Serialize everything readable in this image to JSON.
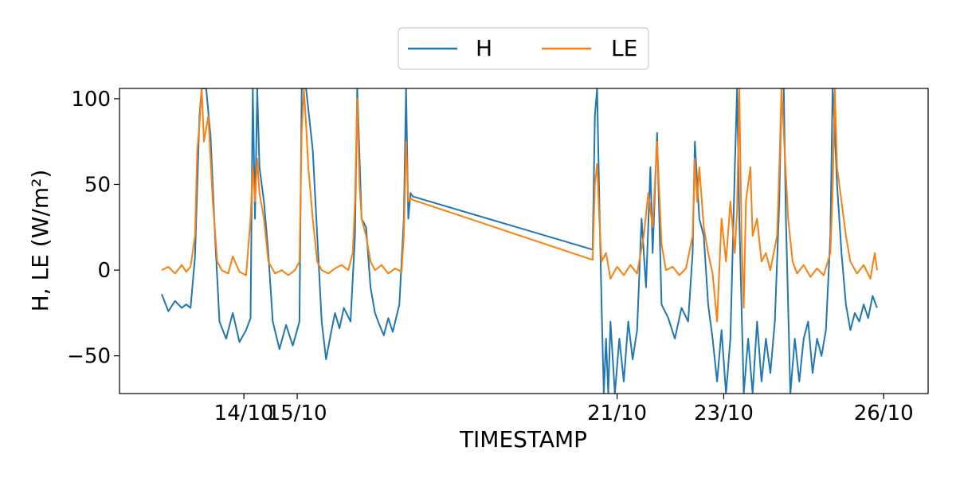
{
  "chart_data": {
    "type": "line",
    "xlabel": "TIMESTAMP",
    "ylabel": "H, LE (W/m²)",
    "ylim": [
      -72,
      106
    ],
    "yticks": [
      -50,
      0,
      50,
      100
    ],
    "ytick_labels": [
      "−50",
      "0",
      "50",
      "100"
    ],
    "xlim": [
      "2023-10-11T16:00",
      "2023-10-26T20:00"
    ],
    "xticks": [
      "2023-10-14T00:00",
      "2023-10-15T00:00",
      "2023-10-21T00:00",
      "2023-10-23T00:00",
      "2023-10-26T00:00"
    ],
    "xtick_labels": [
      "14/10",
      "15/10",
      "21/10",
      "23/10",
      "26/10"
    ],
    "legend": {
      "position": "top-center, outside plot",
      "columns": 2
    },
    "grid": false,
    "series": [
      {
        "name": "H",
        "color": "#1f77b4",
        "points": [
          [
            "2023-10-12T11:00",
            -14
          ],
          [
            "2023-10-12T14:00",
            -24
          ],
          [
            "2023-10-12T17:00",
            -18
          ],
          [
            "2023-10-12T20:00",
            -22
          ],
          [
            "2023-10-12T22:00",
            -20
          ],
          [
            "2023-10-13T00:00",
            -22
          ],
          [
            "2023-10-13T02:00",
            8
          ],
          [
            "2023-10-13T04:00",
            90
          ],
          [
            "2023-10-13T05:00",
            106
          ],
          [
            "2023-10-13T07:00",
            106
          ],
          [
            "2023-10-13T09:00",
            78
          ],
          [
            "2023-10-13T11:00",
            20
          ],
          [
            "2023-10-13T13:00",
            -30
          ],
          [
            "2023-10-13T16:00",
            -40
          ],
          [
            "2023-10-13T19:00",
            -25
          ],
          [
            "2023-10-13T22:00",
            -42
          ],
          [
            "2023-10-14T01:00",
            -35
          ],
          [
            "2023-10-14T03:00",
            -28
          ],
          [
            "2023-10-14T04:00",
            106
          ],
          [
            "2023-10-14T05:00",
            30
          ],
          [
            "2023-10-14T06:00",
            106
          ],
          [
            "2023-10-14T07:00",
            60
          ],
          [
            "2023-10-14T09:00",
            40
          ],
          [
            "2023-10-14T11:00",
            10
          ],
          [
            "2023-10-14T13:00",
            -30
          ],
          [
            "2023-10-14T16:00",
            -46
          ],
          [
            "2023-10-14T19:00",
            -32
          ],
          [
            "2023-10-14T22:00",
            -44
          ],
          [
            "2023-10-15T01:00",
            -30
          ],
          [
            "2023-10-15T02:00",
            106
          ],
          [
            "2023-10-15T04:00",
            106
          ],
          [
            "2023-10-15T07:00",
            70
          ],
          [
            "2023-10-15T09:00",
            20
          ],
          [
            "2023-10-15T11:00",
            -30
          ],
          [
            "2023-10-15T13:00",
            -52
          ],
          [
            "2023-10-15T15:00",
            -38
          ],
          [
            "2023-10-15T17:00",
            -25
          ],
          [
            "2023-10-15T19:00",
            -34
          ],
          [
            "2023-10-15T21:00",
            -22
          ],
          [
            "2023-10-16T00:00",
            -30
          ],
          [
            "2023-10-16T02:00",
            20
          ],
          [
            "2023-10-16T03:00",
            106
          ],
          [
            "2023-10-16T05:00",
            30
          ],
          [
            "2023-10-16T07:00",
            25
          ],
          [
            "2023-10-16T09:00",
            -10
          ],
          [
            "2023-10-16T11:00",
            -25
          ],
          [
            "2023-10-16T13:00",
            -32
          ],
          [
            "2023-10-16T15:00",
            -38
          ],
          [
            "2023-10-16T17:00",
            -28
          ],
          [
            "2023-10-16T19:00",
            -36
          ],
          [
            "2023-10-16T22:00",
            -20
          ],
          [
            "2023-10-17T00:00",
            30
          ],
          [
            "2023-10-17T01:00",
            106
          ],
          [
            "2023-10-17T02:00",
            30
          ],
          [
            "2023-10-17T03:00",
            45
          ],
          [
            "2023-10-17T04:00",
            43
          ],
          [
            "2023-10-20T13:00",
            12
          ],
          [
            "2023-10-20T14:00",
            90
          ],
          [
            "2023-10-20T15:00",
            106
          ],
          [
            "2023-10-20T16:00",
            40
          ],
          [
            "2023-10-20T17:00",
            -20
          ],
          [
            "2023-10-20T18:00",
            -72
          ],
          [
            "2023-10-20T19:00",
            -40
          ],
          [
            "2023-10-20T20:00",
            -72
          ],
          [
            "2023-10-20T21:00",
            -30
          ],
          [
            "2023-10-20T23:00",
            -72
          ],
          [
            "2023-10-21T01:00",
            -40
          ],
          [
            "2023-10-21T03:00",
            -65
          ],
          [
            "2023-10-21T05:00",
            -30
          ],
          [
            "2023-10-21T07:00",
            -52
          ],
          [
            "2023-10-21T09:00",
            -35
          ],
          [
            "2023-10-21T11:00",
            30
          ],
          [
            "2023-10-21T13:00",
            -10
          ],
          [
            "2023-10-21T15:00",
            60
          ],
          [
            "2023-10-21T16:00",
            10
          ],
          [
            "2023-10-21T18:00",
            80
          ],
          [
            "2023-10-21T20:00",
            -20
          ],
          [
            "2023-10-21T23:00",
            -28
          ],
          [
            "2023-10-22T02:00",
            -40
          ],
          [
            "2023-10-22T05:00",
            -22
          ],
          [
            "2023-10-22T08:00",
            -30
          ],
          [
            "2023-10-22T10:00",
            10
          ],
          [
            "2023-10-22T11:00",
            75
          ],
          [
            "2023-10-22T13:00",
            30
          ],
          [
            "2023-10-22T15:00",
            20
          ],
          [
            "2023-10-22T17:00",
            -20
          ],
          [
            "2023-10-22T19:00",
            -40
          ],
          [
            "2023-10-22T21:00",
            -65
          ],
          [
            "2023-10-22T23:00",
            -35
          ],
          [
            "2023-10-23T01:00",
            -72
          ],
          [
            "2023-10-23T03:00",
            -40
          ],
          [
            "2023-10-23T05:00",
            60
          ],
          [
            "2023-10-23T06:00",
            106
          ],
          [
            "2023-10-23T07:00",
            30
          ],
          [
            "2023-10-23T09:00",
            -72
          ],
          [
            "2023-10-23T11:00",
            -40
          ],
          [
            "2023-10-23T13:00",
            -72
          ],
          [
            "2023-10-23T15:00",
            -30
          ],
          [
            "2023-10-23T17:00",
            -65
          ],
          [
            "2023-10-23T19:00",
            -40
          ],
          [
            "2023-10-23T21:00",
            -60
          ],
          [
            "2023-10-23T23:00",
            -30
          ],
          [
            "2023-10-24T01:00",
            40
          ],
          [
            "2023-10-24T02:00",
            106
          ],
          [
            "2023-10-24T03:00",
            106
          ],
          [
            "2023-10-24T04:00",
            30
          ],
          [
            "2023-10-24T06:00",
            -72
          ],
          [
            "2023-10-24T08:00",
            -40
          ],
          [
            "2023-10-24T10:00",
            -65
          ],
          [
            "2023-10-24T12:00",
            -40
          ],
          [
            "2023-10-24T14:00",
            -30
          ],
          [
            "2023-10-24T16:00",
            -60
          ],
          [
            "2023-10-24T18:00",
            -40
          ],
          [
            "2023-10-24T20:00",
            -50
          ],
          [
            "2023-10-24T22:00",
            -35
          ],
          [
            "2023-10-25T00:00",
            20
          ],
          [
            "2023-10-25T01:00",
            106
          ],
          [
            "2023-10-25T02:00",
            80
          ],
          [
            "2023-10-25T03:00",
            50
          ],
          [
            "2023-10-25T05:00",
            10
          ],
          [
            "2023-10-25T07:00",
            -20
          ],
          [
            "2023-10-25T09:00",
            -35
          ],
          [
            "2023-10-25T11:00",
            -25
          ],
          [
            "2023-10-25T13:00",
            -30
          ],
          [
            "2023-10-25T15:00",
            -20
          ],
          [
            "2023-10-25T17:00",
            -28
          ],
          [
            "2023-10-25T19:00",
            -15
          ],
          [
            "2023-10-25T21:00",
            -22
          ]
        ]
      },
      {
        "name": "LE",
        "color": "#ff7f0e",
        "points": [
          [
            "2023-10-12T11:00",
            0
          ],
          [
            "2023-10-12T14:00",
            2
          ],
          [
            "2023-10-12T17:00",
            -2
          ],
          [
            "2023-10-12T20:00",
            3
          ],
          [
            "2023-10-12T22:00",
            -1
          ],
          [
            "2023-10-13T00:00",
            2
          ],
          [
            "2023-10-13T02:00",
            20
          ],
          [
            "2023-10-13T03:00",
            70
          ],
          [
            "2023-10-13T04:00",
            85
          ],
          [
            "2023-10-13T05:00",
            106
          ],
          [
            "2023-10-13T06:00",
            75
          ],
          [
            "2023-10-13T08:00",
            90
          ],
          [
            "2023-10-13T10:00",
            40
          ],
          [
            "2023-10-13T12:00",
            5
          ],
          [
            "2023-10-13T14:00",
            0
          ],
          [
            "2023-10-13T17:00",
            -2
          ],
          [
            "2023-10-13T19:00",
            8
          ],
          [
            "2023-10-13T22:00",
            -1
          ],
          [
            "2023-10-14T01:00",
            -3
          ],
          [
            "2023-10-14T03:00",
            30
          ],
          [
            "2023-10-14T04:00",
            60
          ],
          [
            "2023-10-14T05:00",
            40
          ],
          [
            "2023-10-14T06:00",
            65
          ],
          [
            "2023-10-14T07:00",
            45
          ],
          [
            "2023-10-14T09:00",
            30
          ],
          [
            "2023-10-14T11:00",
            5
          ],
          [
            "2023-10-14T14:00",
            -2
          ],
          [
            "2023-10-14T17:00",
            0
          ],
          [
            "2023-10-14T20:00",
            -3
          ],
          [
            "2023-10-14T23:00",
            0
          ],
          [
            "2023-10-15T01:00",
            5
          ],
          [
            "2023-10-15T02:00",
            80
          ],
          [
            "2023-10-15T03:00",
            106
          ],
          [
            "2023-10-15T04:00",
            85
          ],
          [
            "2023-10-15T05:00",
            60
          ],
          [
            "2023-10-15T07:00",
            30
          ],
          [
            "2023-10-15T09:00",
            5
          ],
          [
            "2023-10-15T11:00",
            0
          ],
          [
            "2023-10-15T14:00",
            -2
          ],
          [
            "2023-10-15T17:00",
            1
          ],
          [
            "2023-10-15T20:00",
            3
          ],
          [
            "2023-10-15T23:00",
            0
          ],
          [
            "2023-10-16T01:00",
            10
          ],
          [
            "2023-10-16T02:00",
            40
          ],
          [
            "2023-10-16T03:00",
            100
          ],
          [
            "2023-10-16T04:00",
            50
          ],
          [
            "2023-10-16T05:00",
            30
          ],
          [
            "2023-10-16T07:00",
            20
          ],
          [
            "2023-10-16T09:00",
            5
          ],
          [
            "2023-10-16T11:00",
            0
          ],
          [
            "2023-10-16T14:00",
            3
          ],
          [
            "2023-10-16T17:00",
            -2
          ],
          [
            "2023-10-16T20:00",
            1
          ],
          [
            "2023-10-16T23:00",
            -1
          ],
          [
            "2023-10-17T00:00",
            20
          ],
          [
            "2023-10-17T01:00",
            75
          ],
          [
            "2023-10-17T02:00",
            40
          ],
          [
            "2023-10-17T03:00",
            42
          ],
          [
            "2023-10-17T04:00",
            41
          ],
          [
            "2023-10-20T13:00",
            6
          ],
          [
            "2023-10-20T14:00",
            50
          ],
          [
            "2023-10-20T15:00",
            62
          ],
          [
            "2023-10-20T16:00",
            30
          ],
          [
            "2023-10-20T17:00",
            5
          ],
          [
            "2023-10-20T19:00",
            10
          ],
          [
            "2023-10-20T21:00",
            -5
          ],
          [
            "2023-10-21T00:00",
            2
          ],
          [
            "2023-10-21T03:00",
            -3
          ],
          [
            "2023-10-21T06:00",
            3
          ],
          [
            "2023-10-21T09:00",
            -2
          ],
          [
            "2023-10-21T12:00",
            20
          ],
          [
            "2023-10-21T14:00",
            45
          ],
          [
            "2023-10-21T16:00",
            25
          ],
          [
            "2023-10-21T18:00",
            75
          ],
          [
            "2023-10-21T20:00",
            15
          ],
          [
            "2023-10-21T22:00",
            0
          ],
          [
            "2023-10-22T01:00",
            2
          ],
          [
            "2023-10-22T04:00",
            -3
          ],
          [
            "2023-10-22T07:00",
            1
          ],
          [
            "2023-10-22T10:00",
            20
          ],
          [
            "2023-10-22T11:00",
            65
          ],
          [
            "2023-10-22T12:00",
            40
          ],
          [
            "2023-10-22T13:00",
            60
          ],
          [
            "2023-10-22T15:00",
            25
          ],
          [
            "2023-10-22T17:00",
            10
          ],
          [
            "2023-10-22T19:00",
            -2
          ],
          [
            "2023-10-22T21:00",
            -30
          ],
          [
            "2023-10-22T23:00",
            30
          ],
          [
            "2023-10-23T01:00",
            5
          ],
          [
            "2023-10-23T03:00",
            40
          ],
          [
            "2023-10-23T05:00",
            10
          ],
          [
            "2023-10-23T06:00",
            35
          ],
          [
            "2023-10-23T07:00",
            106
          ],
          [
            "2023-10-23T08:00",
            20
          ],
          [
            "2023-10-23T09:00",
            -22
          ],
          [
            "2023-10-23T10:00",
            40
          ],
          [
            "2023-10-23T12:00",
            60
          ],
          [
            "2023-10-23T13:00",
            20
          ],
          [
            "2023-10-23T15:00",
            30
          ],
          [
            "2023-10-23T17:00",
            5
          ],
          [
            "2023-10-23T19:00",
            10
          ],
          [
            "2023-10-23T21:00",
            0
          ],
          [
            "2023-10-24T00:00",
            20
          ],
          [
            "2023-10-24T01:00",
            60
          ],
          [
            "2023-10-24T02:00",
            106
          ],
          [
            "2023-10-24T03:00",
            80
          ],
          [
            "2023-10-24T05:00",
            30
          ],
          [
            "2023-10-24T07:00",
            5
          ],
          [
            "2023-10-24T09:00",
            -2
          ],
          [
            "2023-10-24T12:00",
            3
          ],
          [
            "2023-10-24T15:00",
            -4
          ],
          [
            "2023-10-24T18:00",
            1
          ],
          [
            "2023-10-24T21:00",
            -3
          ],
          [
            "2023-10-25T00:00",
            10
          ],
          [
            "2023-10-25T01:00",
            45
          ],
          [
            "2023-10-25T02:00",
            106
          ],
          [
            "2023-10-25T03:00",
            60
          ],
          [
            "2023-10-25T05:00",
            40
          ],
          [
            "2023-10-25T07:00",
            20
          ],
          [
            "2023-10-25T09:00",
            5
          ],
          [
            "2023-10-25T12:00",
            -2
          ],
          [
            "2023-10-25T15:00",
            3
          ],
          [
            "2023-10-25T18:00",
            -5
          ],
          [
            "2023-10-25T20:00",
            10
          ],
          [
            "2023-10-25T21:00",
            0
          ]
        ]
      }
    ]
  }
}
